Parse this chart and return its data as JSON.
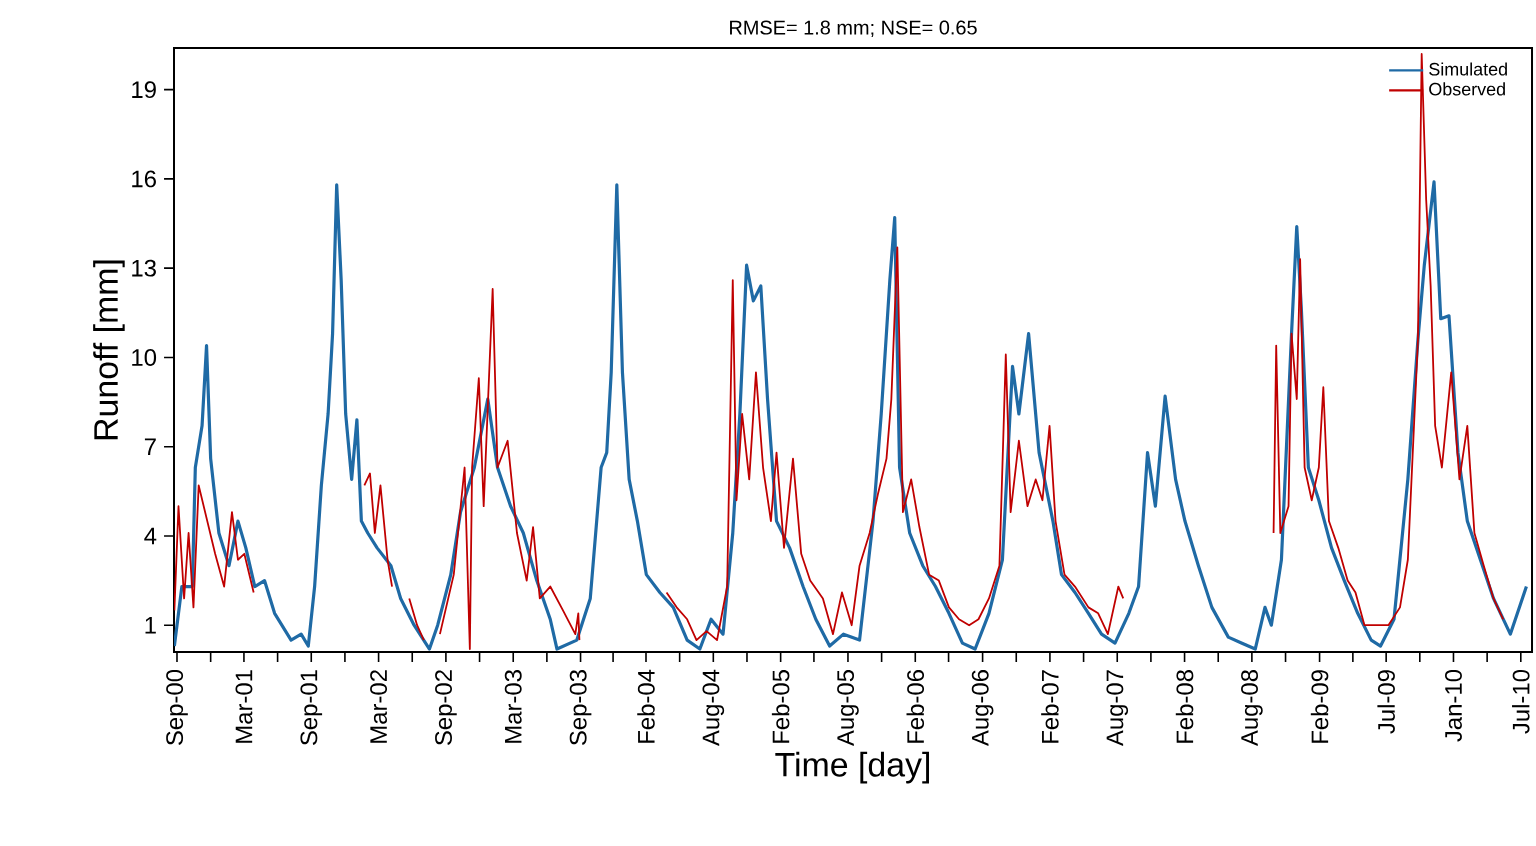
{
  "chart_data": {
    "type": "line",
    "title": "RMSE= 1.8 mm; NSE= 0.65",
    "xlabel": "Time [day]",
    "ylabel": "Runoff [mm]",
    "xlim": [
      "2000-09-15",
      "2010-08-25"
    ],
    "ylim": [
      0.1,
      20.4
    ],
    "yticks": [
      1,
      4,
      7,
      10,
      13,
      16,
      19
    ],
    "xticks": [
      {
        "value": "2000-09-23",
        "label": "Sep-00"
      },
      {
        "value": "2000-12-22",
        "label": null
      },
      {
        "value": "2001-03-21",
        "label": "Mar-01"
      },
      {
        "value": "2001-06-19",
        "label": null
      },
      {
        "value": "2001-09-17",
        "label": "Sep-01"
      },
      {
        "value": "2001-12-16",
        "label": null
      },
      {
        "value": "2002-03-16",
        "label": "Mar-02"
      },
      {
        "value": "2002-06-14",
        "label": null
      },
      {
        "value": "2002-09-12",
        "label": "Sep-02"
      },
      {
        "value": "2002-12-11",
        "label": null
      },
      {
        "value": "2003-03-11",
        "label": "Mar-03"
      },
      {
        "value": "2003-06-09",
        "label": null
      },
      {
        "value": "2003-09-07",
        "label": "Sep-03"
      },
      {
        "value": "2003-12-03",
        "label": null
      },
      {
        "value": "2004-02-29",
        "label": "Feb-04"
      },
      {
        "value": "2004-05-29",
        "label": null
      },
      {
        "value": "2004-08-27",
        "label": "Aug-04"
      },
      {
        "value": "2004-11-25",
        "label": null
      },
      {
        "value": "2005-02-23",
        "label": "Feb-05"
      },
      {
        "value": "2005-05-23",
        "label": null
      },
      {
        "value": "2005-08-22",
        "label": "Aug-05"
      },
      {
        "value": "2005-11-20",
        "label": null
      },
      {
        "value": "2006-02-18",
        "label": "Feb-06"
      },
      {
        "value": "2006-05-18",
        "label": null
      },
      {
        "value": "2006-08-17",
        "label": "Aug-06"
      },
      {
        "value": "2006-11-15",
        "label": null
      },
      {
        "value": "2007-02-13",
        "label": "Feb-07"
      },
      {
        "value": "2007-05-14",
        "label": null
      },
      {
        "value": "2007-08-12",
        "label": "Aug-07"
      },
      {
        "value": "2007-11-10",
        "label": null
      },
      {
        "value": "2008-02-08",
        "label": "Feb-08"
      },
      {
        "value": "2008-05-08",
        "label": null
      },
      {
        "value": "2008-08-06",
        "label": "Aug-08"
      },
      {
        "value": "2008-11-04",
        "label": null
      },
      {
        "value": "2009-02-03",
        "label": "Feb-09"
      },
      {
        "value": "2009-05-03",
        "label": null
      },
      {
        "value": "2009-07-31",
        "label": "Jul-09"
      },
      {
        "value": "2009-10-29",
        "label": null
      },
      {
        "value": "2010-01-27",
        "label": "Jan-10"
      },
      {
        "value": "2010-04-27",
        "label": null
      },
      {
        "value": "2010-07-26",
        "label": "Jul-10"
      }
    ],
    "legend": "top right",
    "series": [
      {
        "name": "Simulated",
        "color": "#1f6aa5",
        "x": [
          "2000-09-16",
          "2000-10-06",
          "2000-11-03",
          "2000-11-11",
          "2000-11-29",
          "2000-12-11",
          "2000-12-22",
          "2001-01-13",
          "2001-02-09",
          "2001-03-05",
          "2001-03-26",
          "2001-04-19",
          "2001-05-15",
          "2001-06-11",
          "2001-07-25",
          "2001-08-21",
          "2001-09-09",
          "2001-09-26",
          "2001-10-14",
          "2001-11-01",
          "2001-11-13",
          "2001-11-24",
          "2001-12-06",
          "2001-12-18",
          "2002-01-03",
          "2002-01-17",
          "2002-01-29",
          "2002-02-15",
          "2002-03-12",
          "2002-04-18",
          "2002-05-14",
          "2002-06-19",
          "2002-07-30",
          "2002-08-21",
          "2002-09-25",
          "2002-10-21",
          "2002-11-27",
          "2003-01-02",
          "2003-01-28",
          "2003-03-04",
          "2003-04-07",
          "2003-05-13",
          "2003-06-18",
          "2003-07-06",
          "2003-08-28",
          "2003-10-03",
          "2003-11-01",
          "2003-11-16",
          "2003-11-28",
          "2003-12-13",
          "2003-12-28",
          "2004-01-15",
          "2004-02-06",
          "2004-03-01",
          "2004-04-06",
          "2004-05-12",
          "2004-06-18",
          "2004-07-22",
          "2004-08-21",
          "2004-09-22",
          "2004-10-18",
          "2004-11-06",
          "2004-11-24",
          "2004-12-12",
          "2005-01-01",
          "2005-01-19",
          "2005-02-12",
          "2005-03-19",
          "2005-04-24",
          "2005-05-28",
          "2005-07-04",
          "2005-08-10",
          "2005-09-22",
          "2005-10-28",
          "2005-11-19",
          "2005-12-12",
          "2005-12-25",
          "2006-01-07",
          "2006-02-03",
          "2006-03-10",
          "2006-04-13",
          "2006-05-19",
          "2006-06-24",
          "2006-07-28",
          "2006-09-03",
          "2006-10-09",
          "2006-11-05",
          "2006-11-22",
          "2006-12-18",
          "2007-01-15",
          "2007-02-21",
          "2007-03-16",
          "2007-04-21",
          "2007-05-27",
          "2007-07-01",
          "2007-08-06",
          "2007-09-12",
          "2007-10-08",
          "2007-11-01",
          "2007-11-22",
          "2007-12-18",
          "2008-01-15",
          "2008-02-09",
          "2008-03-16",
          "2008-04-21",
          "2008-06-04",
          "2008-07-09",
          "2008-08-15",
          "2008-09-10",
          "2008-09-27",
          "2008-10-24",
          "2008-11-20",
          "2008-12-04",
          "2008-12-16",
          "2009-01-04",
          "2009-02-01",
          "2009-03-07",
          "2009-04-10",
          "2009-05-16",
          "2009-06-21",
          "2009-07-16",
          "2009-08-21",
          "2009-09-27",
          "2009-10-24",
          "2009-11-10",
          "2009-12-06",
          "2009-12-24",
          "2010-01-15",
          "2010-02-08",
          "2010-03-05",
          "2010-04-09",
          "2010-05-14",
          "2010-06-28",
          "2010-08-10"
        ],
        "values": [
          0.3,
          2.3,
          2.3,
          6.3,
          7.7,
          10.4,
          6.6,
          4.1,
          3.0,
          4.5,
          3.6,
          2.3,
          2.5,
          1.4,
          0.5,
          0.7,
          0.3,
          2.3,
          5.7,
          8.1,
          10.8,
          15.8,
          12.6,
          8.1,
          5.9,
          7.9,
          4.5,
          4.1,
          3.6,
          3.0,
          1.9,
          1.0,
          0.2,
          1.0,
          2.7,
          4.8,
          6.3,
          8.6,
          6.3,
          5.0,
          4.1,
          2.5,
          1.2,
          0.2,
          0.5,
          1.9,
          6.3,
          6.8,
          9.5,
          15.8,
          9.5,
          5.9,
          4.5,
          2.7,
          2.1,
          1.6,
          0.5,
          0.2,
          1.2,
          0.7,
          4.1,
          8.1,
          13.1,
          11.9,
          12.4,
          8.6,
          4.5,
          3.6,
          2.3,
          1.2,
          0.3,
          0.7,
          0.5,
          4.5,
          8.1,
          12.6,
          14.7,
          6.3,
          4.1,
          3.0,
          2.3,
          1.4,
          0.4,
          0.2,
          1.4,
          3.2,
          9.7,
          8.1,
          10.8,
          6.8,
          4.5,
          2.7,
          2.1,
          1.4,
          0.7,
          0.4,
          1.4,
          2.3,
          6.8,
          5.0,
          8.7,
          5.9,
          4.5,
          3.0,
          1.6,
          0.6,
          0.4,
          0.2,
          1.6,
          1.0,
          3.2,
          10.8,
          14.4,
          11.7,
          6.3,
          5.2,
          3.6,
          2.5,
          1.4,
          0.5,
          0.3,
          1.2,
          5.9,
          10.6,
          13.1,
          15.9,
          11.3,
          11.4,
          6.8,
          4.5,
          3.2,
          1.9,
          0.7,
          2.3
        ]
      },
      {
        "name": "Observed",
        "color": "#c00000",
        "x": [
          "2000-09-16",
          "2000-09-27",
          "2000-10-12",
          "2000-10-24",
          "2000-11-06",
          "2000-11-20",
          "2001-01-03",
          "2001-01-27",
          "2001-02-17",
          "2001-03-05",
          "2001-03-22",
          "2001-04-16",
          "2001-09-01",
          "2002-02-06",
          "2002-02-21",
          "2002-03-06",
          "2002-03-21",
          "2002-04-09",
          "2002-04-21",
          "2002-05-15",
          "2002-06-06",
          "2002-06-27",
          "2002-07-15",
          "2002-08-06",
          "2002-08-27",
          "2002-10-03",
          "2002-11-01",
          "2002-11-15",
          "2002-11-21",
          "2002-12-09",
          "2002-12-22",
          "2003-01-15",
          "2003-01-28",
          "2003-02-24",
          "2003-03-21",
          "2003-04-16",
          "2003-05-03",
          "2003-05-21",
          "2003-06-18",
          "2003-07-22",
          "2003-08-24",
          "2003-09-01",
          "2003-09-04",
          "2003-12-01",
          "2004-04-24",
          "2004-05-21",
          "2004-06-18",
          "2004-07-13",
          "2004-08-09",
          "2004-09-06",
          "2004-10-03",
          "2004-10-18",
          "2004-10-28",
          "2004-11-12",
          "2004-12-01",
          "2004-12-19",
          "2005-01-07",
          "2005-01-28",
          "2005-02-12",
          "2005-03-04",
          "2005-03-28",
          "2005-04-19",
          "2005-05-13",
          "2005-06-16",
          "2005-07-13",
          "2005-08-06",
          "2005-09-01",
          "2005-09-22",
          "2005-10-19",
          "2005-11-10",
          "2005-12-03",
          "2005-12-16",
          "2006-01-01",
          "2006-01-16",
          "2006-02-07",
          "2006-03-01",
          "2006-03-27",
          "2006-04-22",
          "2006-05-19",
          "2006-06-15",
          "2006-07-12",
          "2006-08-06",
          "2006-09-03",
          "2006-10-01",
          "2006-10-18",
          "2006-10-31",
          "2006-11-22",
          "2006-12-15",
          "2007-01-06",
          "2007-01-24",
          "2007-02-12",
          "2007-02-28",
          "2007-03-24",
          "2007-04-21",
          "2007-05-27",
          "2007-06-22",
          "2007-07-18",
          "2007-08-15",
          "2007-08-28",
          "2008-03-01",
          "2008-10-03",
          "2008-10-10",
          "2008-10-21",
          "2008-11-12",
          "2008-11-20",
          "2008-12-04",
          "2008-12-13",
          "2008-12-25",
          "2009-01-13",
          "2009-02-01",
          "2009-02-13",
          "2009-02-28",
          "2009-03-25",
          "2009-04-19",
          "2009-05-10",
          "2009-06-03",
          "2009-07-09",
          "2009-08-06",
          "2009-09-06",
          "2009-09-27",
          "2009-10-24",
          "2009-11-03",
          "2009-11-15",
          "2009-11-27",
          "2009-12-09",
          "2009-12-27",
          "2010-01-21",
          "2010-02-12",
          "2010-03-05",
          "2010-03-24",
          "2010-04-18",
          "2010-05-14",
          "2010-06-09"
        ],
        "values": [
          1.5,
          5.0,
          1.9,
          4.1,
          1.6,
          5.7,
          3.4,
          2.3,
          4.8,
          3.2,
          3.4,
          2.1,
          null,
          5.7,
          6.1,
          4.1,
          5.7,
          3.2,
          2.3,
          null,
          1.9,
          1.0,
          0.5,
          null,
          0.7,
          2.7,
          6.3,
          0.2,
          6.3,
          9.3,
          5.0,
          12.3,
          6.3,
          7.2,
          4.1,
          2.5,
          4.3,
          1.9,
          2.3,
          1.5,
          0.7,
          1.4,
          0.5,
          null,
          2.1,
          1.6,
          1.2,
          0.5,
          0.8,
          0.5,
          2.3,
          12.6,
          5.2,
          8.1,
          5.9,
          9.5,
          6.3,
          4.5,
          6.8,
          3.6,
          6.6,
          3.4,
          2.5,
          1.9,
          0.7,
          2.1,
          1.0,
          3.0,
          4.1,
          5.4,
          6.6,
          8.6,
          13.7,
          4.8,
          5.9,
          4.3,
          2.7,
          2.5,
          1.6,
          1.2,
          1.0,
          1.2,
          1.9,
          3.0,
          10.1,
          4.8,
          7.2,
          5.0,
          5.9,
          5.2,
          7.7,
          4.5,
          2.7,
          2.3,
          1.6,
          1.4,
          0.7,
          2.3,
          1.9,
          null,
          4.1,
          10.4,
          4.1,
          5.0,
          10.8,
          8.6,
          13.3,
          6.3,
          5.2,
          6.3,
          9.0,
          4.5,
          3.6,
          2.5,
          2.1,
          1.0,
          1.0,
          1.0,
          1.6,
          3.2,
          10.6,
          20.2,
          15.3,
          12.4,
          7.7,
          6.3,
          9.5,
          5.9,
          7.7,
          4.1,
          3.0,
          1.9,
          1.2
        ]
      }
    ]
  }
}
